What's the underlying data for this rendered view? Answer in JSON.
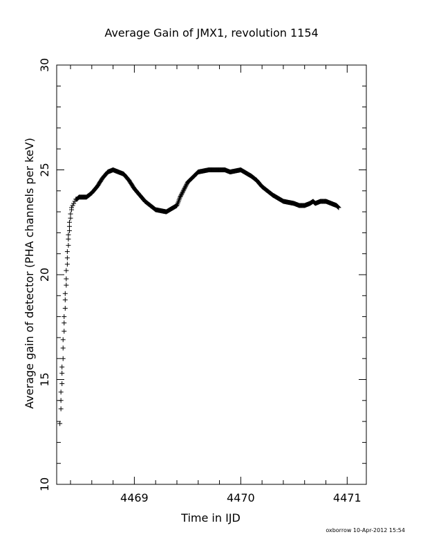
{
  "chart_data": {
    "type": "scatter",
    "title": "Average Gain of JMX1, revolution 1154",
    "xlabel": "Time in IJD",
    "ylabel": "Average gain of detector (PHA channels per keV)",
    "xlim": [
      4468.27,
      4471.18
    ],
    "ylim": [
      10,
      30
    ],
    "x_ticks_labeled": [
      4469,
      4470,
      4471
    ],
    "x_minor_step": 0.2,
    "y_ticks_labeled": [
      10,
      15,
      20,
      25,
      30
    ],
    "y_minor_step": 1,
    "grid": false,
    "legend": "none",
    "marker": "+",
    "colors": {
      "points": "#000000",
      "axes": "#000000",
      "background": "#ffffff"
    },
    "series": [
      {
        "x": [
          4468.3,
          4468.31,
          4468.31,
          4468.31,
          4468.32,
          4468.32,
          4468.32,
          4468.33,
          4468.33,
          4468.33,
          4468.34,
          4468.34,
          4468.34,
          4468.35,
          4468.35,
          4468.35,
          4468.36,
          4468.36,
          4468.36,
          4468.37,
          4468.37,
          4468.37,
          4468.38,
          4468.38,
          4468.38,
          4468.39,
          4468.39,
          4468.39,
          4468.4,
          4468.4,
          4468.41,
          4468.41,
          4468.42,
          4468.43,
          4468.44,
          4468.45,
          4468.46,
          4468.48,
          4468.5,
          4468.55,
          4468.6,
          4468.65,
          4468.7,
          4468.75,
          4468.8,
          4468.85,
          4468.9,
          4468.95,
          4469.0,
          4469.1,
          4469.2,
          4469.3,
          4469.4,
          4469.43,
          4469.5,
          4469.6,
          4469.7,
          4469.8,
          4469.85,
          4469.9,
          4470.0,
          4470.1,
          4470.15,
          4470.2,
          4470.3,
          4470.4,
          4470.5,
          4470.55,
          4470.6,
          4470.65,
          4470.68,
          4470.7,
          4470.75,
          4470.8,
          4470.85,
          4470.9,
          4470.92
        ],
        "y": [
          12.9,
          13.6,
          14.0,
          14.4,
          14.8,
          15.3,
          15.6,
          16.0,
          16.5,
          16.9,
          17.3,
          17.7,
          18.0,
          18.4,
          18.8,
          19.1,
          19.5,
          19.8,
          20.2,
          20.5,
          20.8,
          21.1,
          21.4,
          21.7,
          21.9,
          22.1,
          22.3,
          22.5,
          22.7,
          22.9,
          23.1,
          23.2,
          23.3,
          23.4,
          23.5,
          23.6,
          23.6,
          23.7,
          23.7,
          23.7,
          23.9,
          24.2,
          24.6,
          24.9,
          25.0,
          24.9,
          24.8,
          24.5,
          24.1,
          23.5,
          23.1,
          23.0,
          23.3,
          23.7,
          24.4,
          24.9,
          25.0,
          25.0,
          25.0,
          24.9,
          25.0,
          24.7,
          24.5,
          24.2,
          23.8,
          23.5,
          23.4,
          23.3,
          23.3,
          23.4,
          23.5,
          23.4,
          23.5,
          23.5,
          23.4,
          23.3,
          23.2
        ]
      }
    ]
  },
  "footer": {
    "text": "oxborrow 10-Apr-2012 15:54"
  }
}
